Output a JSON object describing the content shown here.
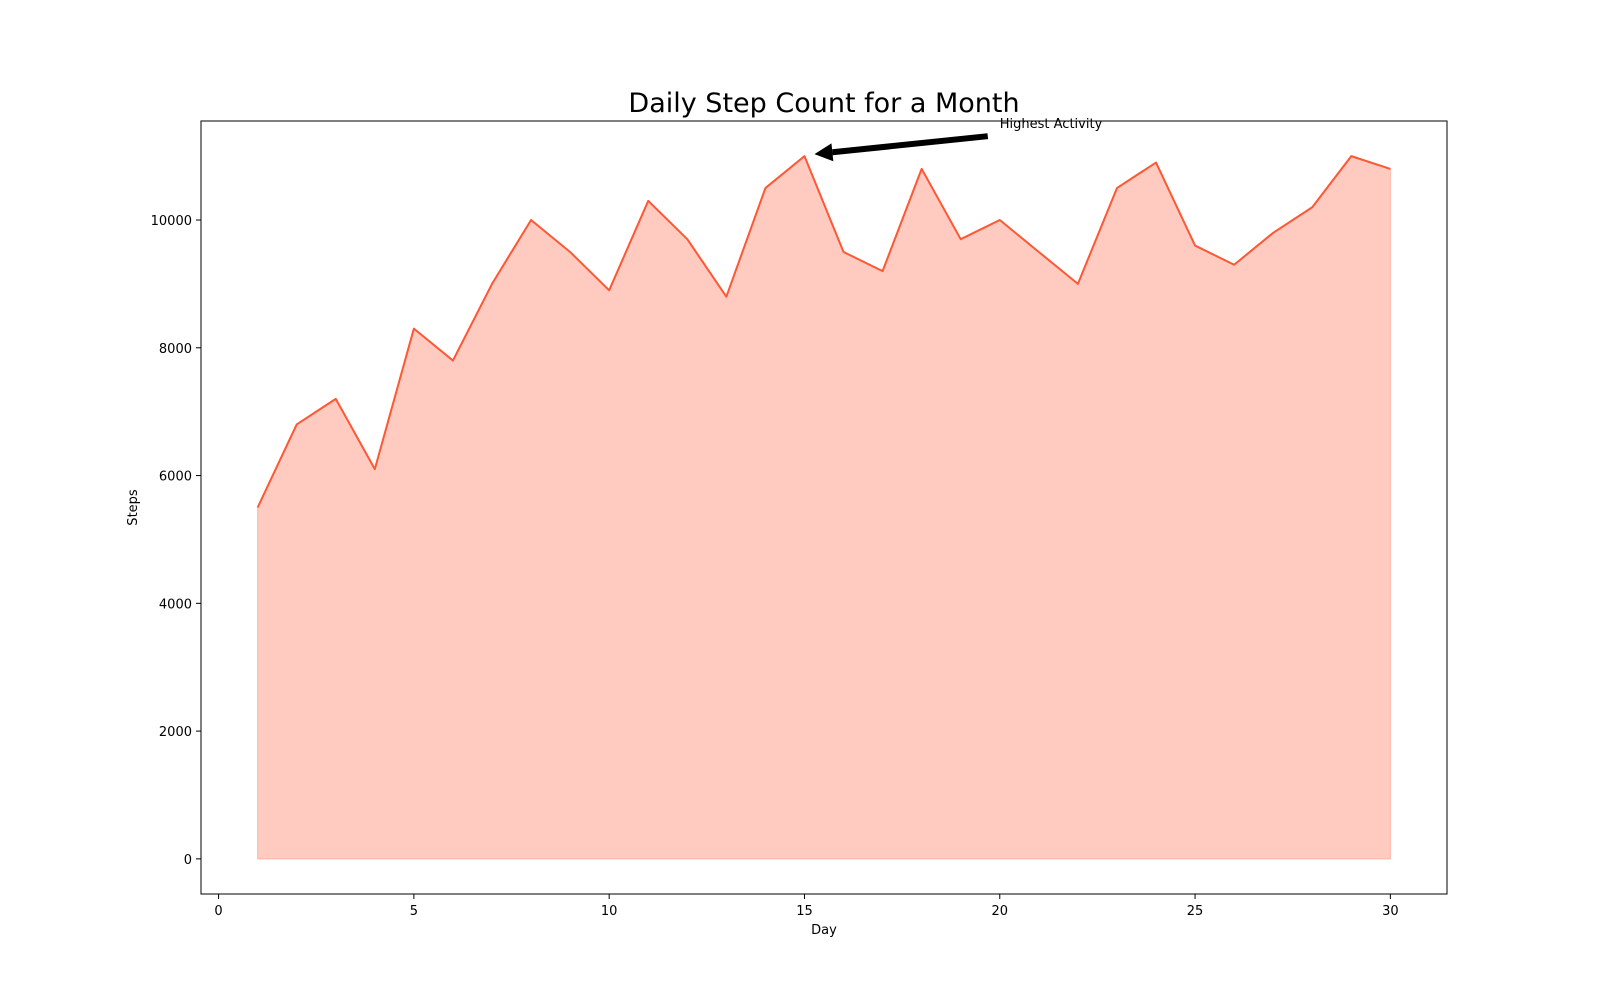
{
  "chart_data": {
    "type": "area",
    "title": "Daily Step Count for a Month",
    "xlabel": "Day",
    "ylabel": "Steps",
    "xlim": [
      -0.45,
      31.45
    ],
    "ylim": [
      -550,
      11550
    ],
    "xticks": [
      0,
      5,
      10,
      15,
      20,
      25,
      30
    ],
    "yticks": [
      0,
      2000,
      4000,
      6000,
      8000,
      10000
    ],
    "grid": false,
    "x": [
      1,
      2,
      3,
      4,
      5,
      6,
      7,
      8,
      9,
      10,
      11,
      12,
      13,
      14,
      15,
      16,
      17,
      18,
      19,
      20,
      21,
      22,
      23,
      24,
      25,
      26,
      27,
      28,
      29,
      30
    ],
    "series": [
      {
        "values": [
          5500,
          6800,
          7200,
          6100,
          8300,
          7800,
          9000,
          10000,
          9500,
          8900,
          10300,
          9700,
          8800,
          10500,
          11000,
          9500,
          9200,
          10800,
          9700,
          10000,
          9500,
          9000,
          10500,
          10900,
          9600,
          9300,
          9800,
          10200,
          11000,
          10800
        ],
        "line_color": "#ff5733",
        "fill_color": "#ffcbc1"
      }
    ],
    "annotations": [
      {
        "text": "Highest Activity",
        "xy": [
          15,
          11000
        ],
        "xytext": [
          20,
          11500
        ]
      }
    ]
  }
}
